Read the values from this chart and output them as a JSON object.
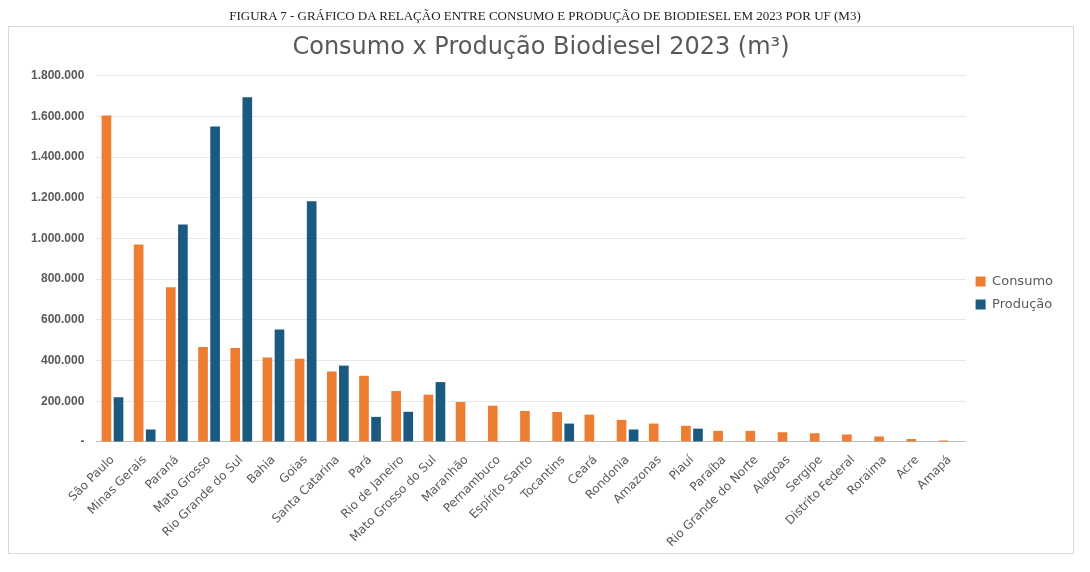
{
  "chart_data": {
    "type": "bar",
    "title": "Consumo x Produção Biodiesel 2023 (m³)",
    "annotations": [
      "FIGURA 7 - GRÁFICO DA RELAÇÃO ENTRE CONSUMO E PRODUÇÃO DE BIODIESEL EM 2023 POR UF (M3)"
    ],
    "categories": [
      "São Paulo",
      "Minas Gerais",
      "Paraná",
      "Mato Grosso",
      "Rio Grande do Sul",
      "Bahia",
      "Goias",
      "Santa Catarina",
      "Pará",
      "Rio de Janeiro",
      "Mato Grosso do Sul",
      "Maranhão",
      "Pernambuco",
      "Espírito Santo",
      "Tocantins",
      "Ceará",
      "Rondonia",
      "Amazonas",
      "Piauí",
      "Paraíba",
      "Rio Grande do Norte",
      "Alagoas",
      "Sergipe",
      "Distrito Federal",
      "Roraima",
      "Acre",
      "Amapá"
    ],
    "series": [
      {
        "name": "Consumo",
        "color": "#ed7d31",
        "values": [
          1605000,
          970000,
          760000,
          467000,
          461000,
          415000,
          409000,
          346000,
          325000,
          250000,
          232000,
          196000,
          178000,
          152000,
          147000,
          134000,
          108000,
          90000,
          79000,
          54000,
          54000,
          47000,
          43000,
          36000,
          27000,
          14000,
          7000
        ]
      },
      {
        "name": "Produção",
        "color": "#1a5a80",
        "values": [
          220000,
          61000,
          1069000,
          1551000,
          1694000,
          553000,
          1183000,
          375000,
          123000,
          148000,
          294000,
          null,
          null,
          null,
          90000,
          null,
          61000,
          null,
          65000,
          null,
          null,
          null,
          null,
          null,
          null,
          null,
          null
        ]
      }
    ],
    "ylim": [
      0,
      1800000
    ],
    "yticks": [
      {
        "value": 0,
        "label": "-"
      },
      {
        "value": 200000,
        "label": "200.000"
      },
      {
        "value": 400000,
        "label": "400.000"
      },
      {
        "value": 600000,
        "label": "600.000"
      },
      {
        "value": 800000,
        "label": "800.000"
      },
      {
        "value": 1000000,
        "label": "1.000.000"
      },
      {
        "value": 1200000,
        "label": "1.200.000"
      },
      {
        "value": 1400000,
        "label": "1.400.000"
      },
      {
        "value": 1600000,
        "label": "1.600.000"
      },
      {
        "value": 1800000,
        "label": "1.800.000"
      }
    ],
    "grid": "y",
    "legend": "right"
  }
}
